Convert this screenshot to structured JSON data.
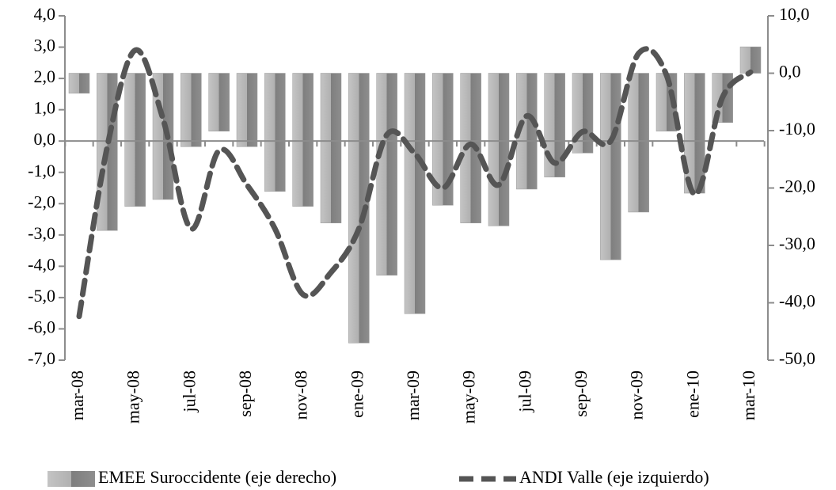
{
  "chart_data": {
    "type": "bar",
    "categories": [
      "mar-08",
      null,
      "may-08",
      null,
      "jul-08",
      null,
      "sep-08",
      null,
      "nov-08",
      null,
      "ene-09",
      null,
      "mar-09",
      null,
      "may-09",
      null,
      "jul-09",
      null,
      "sep-09",
      null,
      "nov-09",
      null,
      "ene-10",
      null,
      "mar-10"
    ],
    "series": [
      {
        "name": "EMEE Suroccidente (eje derecho)",
        "type": "bar",
        "axis": "y2",
        "color": "#9a9a9a",
        "values": [
          -3.5,
          -27.4,
          -23.2,
          -22.0,
          -12.8,
          -10.1,
          -12.8,
          -20.6,
          -23.2,
          -26.1,
          -47.0,
          -35.2,
          -41.9,
          -23.0,
          -26.1,
          -26.6,
          -20.2,
          -18.1,
          -13.9,
          -32.5,
          -24.2,
          -10.1,
          -20.9,
          -8.6,
          4.6
        ]
      },
      {
        "name": "ANDI Valle  (eje izquierdo)",
        "type": "line",
        "axis": "y",
        "color": "#555555",
        "values": [
          -5.6,
          -0.2,
          2.9,
          0.7,
          -2.8,
          -0.3,
          -1.4,
          -2.8,
          -4.9,
          -4.2,
          -2.8,
          0.2,
          -0.4,
          -1.5,
          -0.1,
          -1.4,
          0.8,
          -0.7,
          0.3,
          0.0,
          2.8,
          2.1,
          -1.7,
          1.4,
          2.2
        ]
      }
    ],
    "ylim": [
      -7,
      4
    ],
    "yticks": [
      {
        "value": -7,
        "label": "-7,0"
      },
      {
        "value": -6,
        "label": "-6,0"
      },
      {
        "value": -5,
        "label": "-5,0"
      },
      {
        "value": -4,
        "label": "-4,0"
      },
      {
        "value": -3,
        "label": "-3,0"
      },
      {
        "value": -2,
        "label": "-2,0"
      },
      {
        "value": -1,
        "label": "-1,0"
      },
      {
        "value": 0,
        "label": "0,0"
      },
      {
        "value": 1,
        "label": "1,0"
      },
      {
        "value": 2,
        "label": "2,0"
      },
      {
        "value": 3,
        "label": "3,0"
      },
      {
        "value": 4,
        "label": "4,0"
      }
    ],
    "y2lim": [
      -50,
      10
    ],
    "y2ticks": [
      {
        "value": -50,
        "label": "-50,0"
      },
      {
        "value": -40,
        "label": "-40,0"
      },
      {
        "value": -30,
        "label": "-30,0"
      },
      {
        "value": -20,
        "label": "-20,0"
      },
      {
        "value": -10,
        "label": "-10,0"
      },
      {
        "value": 0,
        "label": "0,0"
      },
      {
        "value": 10,
        "label": "10,0"
      }
    ],
    "legend": "bottom"
  }
}
